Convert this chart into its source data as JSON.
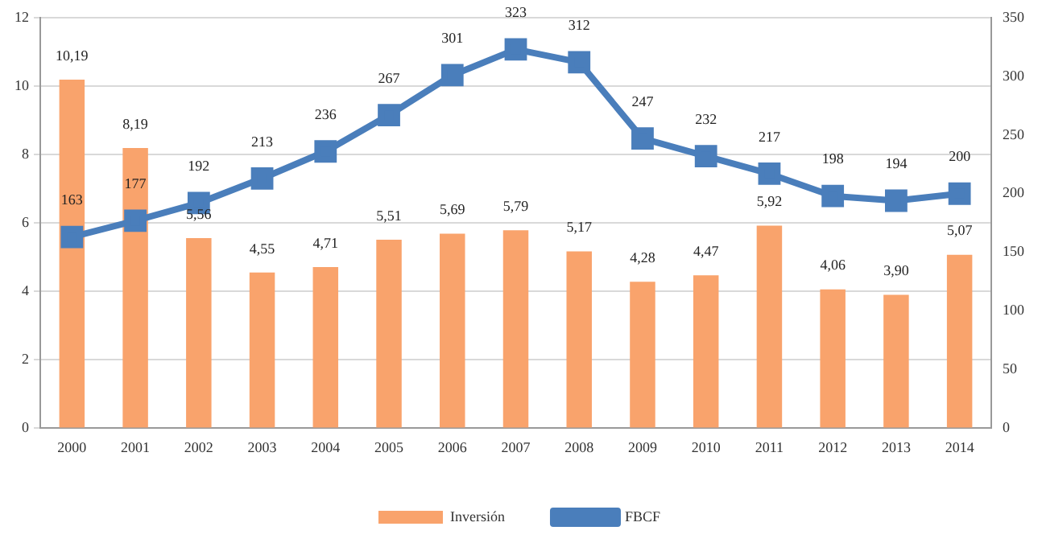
{
  "chart_data": {
    "type": "bar",
    "categories": [
      "2000",
      "2001",
      "2002",
      "2003",
      "2004",
      "2005",
      "2006",
      "2007",
      "2008",
      "2009",
      "2010",
      "2011",
      "2012",
      "2013",
      "2014"
    ],
    "series": [
      {
        "name": "Inversión",
        "color": "#f9a36c",
        "values": [
          10.19,
          8.19,
          5.56,
          4.55,
          4.71,
          5.51,
          5.69,
          5.79,
          5.17,
          4.28,
          4.47,
          5.92,
          4.06,
          3.9,
          5.07
        ],
        "value_labels": [
          "10,19",
          "8,19",
          "5,56",
          "4,55",
          "4,71",
          "5,51",
          "5,69",
          "5,79",
          "5,17",
          "4,28",
          "4,47",
          "5,92",
          "4,06",
          "3,90",
          "5,07"
        ]
      },
      {
        "name": "FBCF",
        "type": "line",
        "axis": "y2",
        "color": "#4a7ebb",
        "values": [
          163,
          177,
          192,
          213,
          236,
          267,
          301,
          323,
          312,
          247,
          232,
          217,
          198,
          194,
          200
        ],
        "value_labels": [
          "163",
          "177",
          "192",
          "213",
          "236",
          "267",
          "301",
          "323",
          "312",
          "247",
          "232",
          "217",
          "198",
          "194",
          "200"
        ]
      }
    ],
    "ylim": [
      0,
      12
    ],
    "yticks": [
      0,
      2,
      4,
      6,
      8,
      10,
      12
    ],
    "y2lim": [
      0,
      350
    ],
    "y2ticks": [
      0,
      50,
      100,
      150,
      200,
      250,
      300,
      350
    ],
    "grid": "y",
    "legend": "bottom",
    "marker": "square",
    "line_style": "solid"
  }
}
